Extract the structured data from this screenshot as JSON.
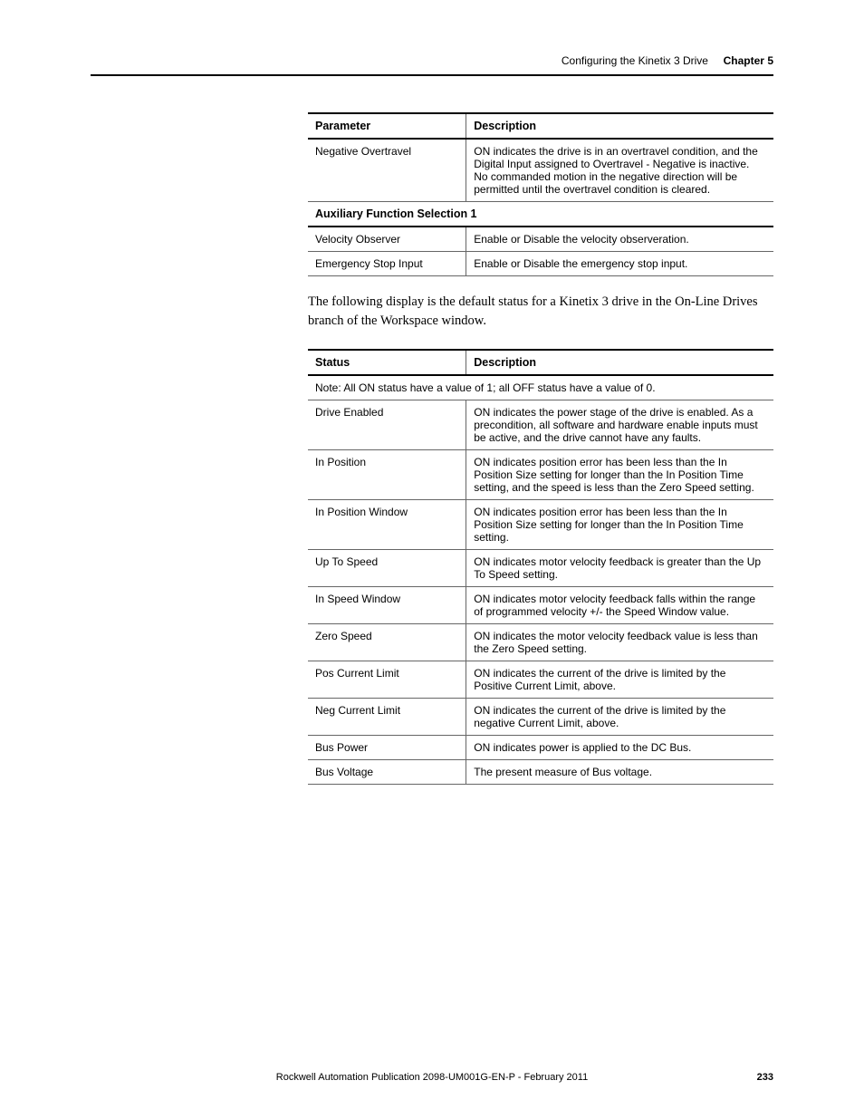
{
  "header": {
    "section_title": "Configuring the Kinetix 3 Drive",
    "chapter_label": "Chapter 5"
  },
  "table1": {
    "headers": {
      "param": "Parameter",
      "desc": "Description"
    },
    "rows": [
      {
        "param": "Negative Overtravel",
        "desc": "ON indicates the drive is in an overtravel condition, and the Digital Input assigned to Overtravel - Negative is inactive.\nNo commanded motion in the negative direction will be permitted until the overtravel condition is cleared."
      }
    ],
    "subheader": "Auxiliary Function Selection 1",
    "rows2": [
      {
        "param": "Velocity Observer",
        "desc": "Enable or Disable the velocity observeration."
      },
      {
        "param": "Emergency Stop Input",
        "desc": "Enable or Disable the emergency stop input."
      }
    ]
  },
  "body_text": "The following display is the default status for a Kinetix 3 drive in the On-Line Drives branch of the Workspace window.",
  "table2": {
    "headers": {
      "status": "Status",
      "desc": "Description"
    },
    "note": "Note: All ON status have a value of 1; all OFF status have a value of 0.",
    "rows": [
      {
        "status": "Drive Enabled",
        "desc": "ON indicates the power stage of the drive is enabled. As a precondition, all software and hardware enable inputs must be active, and the drive cannot have any faults."
      },
      {
        "status": "In Position",
        "desc": "ON indicates position error has been less than the In Position Size setting for longer than the In Position Time setting, and the speed is less than the Zero Speed setting."
      },
      {
        "status": "In Position Window",
        "desc": "ON indicates position error has been less than the In Position Size setting for longer than the In Position Time setting."
      },
      {
        "status": "Up To Speed",
        "desc": "ON indicates motor velocity feedback is greater than the Up To Speed setting."
      },
      {
        "status": "In Speed Window",
        "desc": "ON indicates motor velocity feedback falls within the range of programmed velocity +/- the Speed Window value."
      },
      {
        "status": "Zero Speed",
        "desc": "ON indicates the motor velocity feedback value is less than the Zero Speed setting."
      },
      {
        "status": "Pos Current Limit",
        "desc": "ON indicates the current of the drive is limited by the Positive Current Limit, above."
      },
      {
        "status": "Neg Current Limit",
        "desc": "ON indicates the current of the drive is limited by the negative Current Limit, above."
      },
      {
        "status": "Bus Power",
        "desc": "ON indicates power is applied to the DC Bus."
      },
      {
        "status": "Bus Voltage",
        "desc": "The present measure of Bus voltage."
      }
    ]
  },
  "footer": {
    "publication": "Rockwell Automation Publication 2098-UM001G-EN-P  - February 2011",
    "page_number": "233"
  }
}
